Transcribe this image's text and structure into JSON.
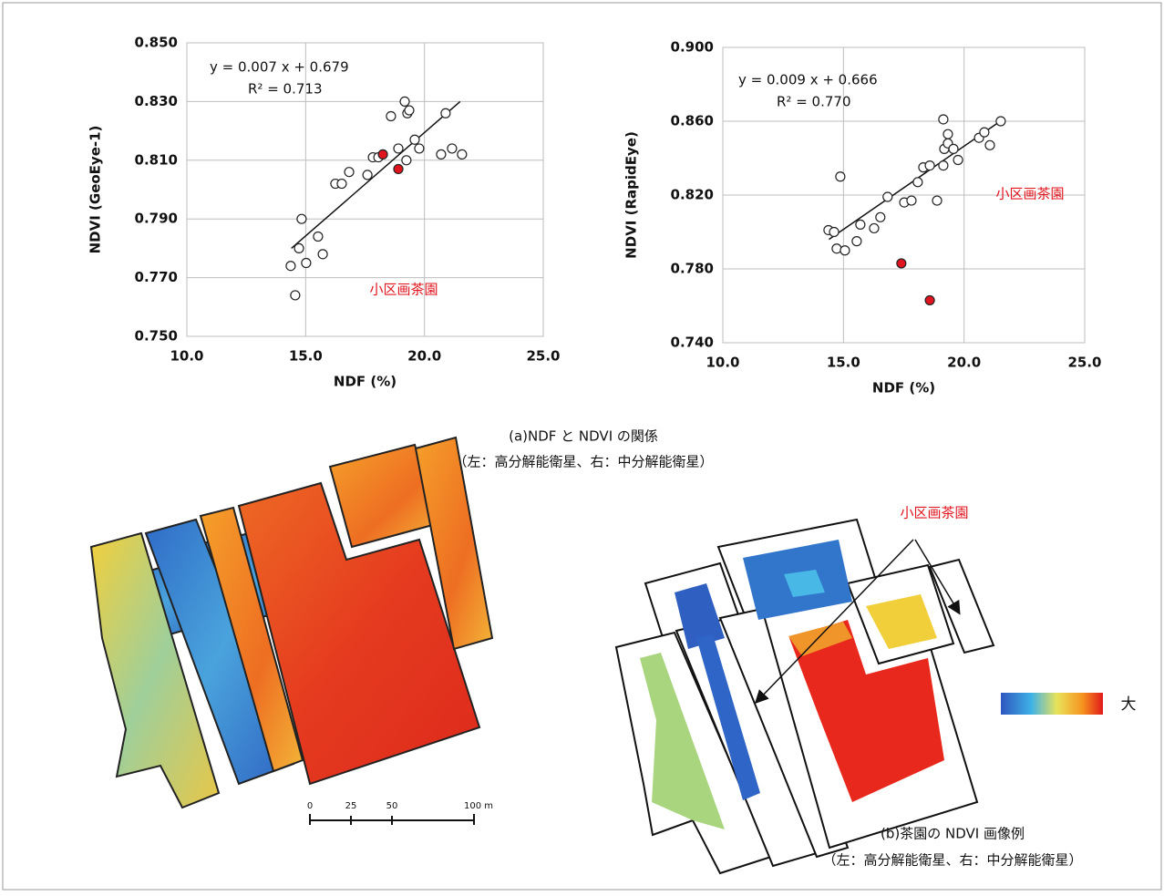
{
  "chart_data": [
    {
      "type": "scatter",
      "y_label": "NDVI (GeoEye-1)",
      "x_label": "NDF (%)",
      "xlim": [
        10,
        25
      ],
      "xticks": [
        {
          "value": 10,
          "label": "10.0"
        },
        {
          "value": 15,
          "label": "15.0"
        },
        {
          "value": 20,
          "label": "20.0"
        },
        {
          "value": 25,
          "label": "25.0"
        }
      ],
      "ylim": [
        0.75,
        0.85
      ],
      "yticks": [
        {
          "value": 0.75,
          "label": "0.750"
        },
        {
          "value": 0.77,
          "label": "0.770"
        },
        {
          "value": 0.79,
          "label": "0.790"
        },
        {
          "value": 0.81,
          "label": "0.810"
        },
        {
          "value": 0.83,
          "label": "0.830"
        },
        {
          "value": 0.85,
          "label": "0.850"
        }
      ],
      "grid": true,
      "series": [
        {
          "color": "#ffffff",
          "x": [
            14.37,
            14.56,
            14.72,
            15.02,
            14.83,
            15.52,
            15.72,
            16.25,
            16.52,
            16.83,
            17.6,
            17.83,
            18.06,
            18.9,
            18.59,
            19.17,
            19.24,
            19.28,
            19.36,
            19.59,
            19.78,
            20.89,
            20.7,
            21.16,
            21.58
          ],
          "values": [
            0.774,
            0.764,
            0.78,
            0.775,
            0.79,
            0.784,
            0.778,
            0.802,
            0.802,
            0.806,
            0.805,
            0.811,
            0.811,
            0.814,
            0.825,
            0.83,
            0.81,
            0.826,
            0.827,
            0.817,
            0.814,
            0.826,
            0.812,
            0.814,
            0.812
          ]
        },
        {
          "color": "#e0141e",
          "x": [
            18.25,
            18.9
          ],
          "values": [
            0.812,
            0.807
          ]
        }
      ],
      "trendline": {
        "x": [
          14.4,
          21.5
        ],
        "values": [
          0.78,
          0.83
        ]
      },
      "equation": "y = 0.007 x + 0.679",
      "r_squared": "R² = 0.713",
      "annotation": "小区画茶園"
    },
    {
      "type": "scatter",
      "y_label": "NDVI (RapidEye)",
      "x_label": "NDF (%)",
      "xlim": [
        10,
        25
      ],
      "xticks": [
        {
          "value": 10,
          "label": "10.0"
        },
        {
          "value": 15,
          "label": "15.0"
        },
        {
          "value": 20,
          "label": "20.0"
        },
        {
          "value": 25,
          "label": "25.0"
        }
      ],
      "ylim": [
        0.74,
        0.9
      ],
      "yticks": [
        {
          "value": 0.74,
          "label": "0.740"
        },
        {
          "value": 0.78,
          "label": "0.780"
        },
        {
          "value": 0.82,
          "label": "0.820"
        },
        {
          "value": 0.86,
          "label": "0.860"
        },
        {
          "value": 0.9,
          "label": "0.900"
        }
      ],
      "grid": true,
      "series": [
        {
          "color": "#ffffff",
          "x": [
            14.38,
            14.61,
            14.87,
            14.72,
            15.06,
            15.55,
            15.7,
            16.27,
            16.53,
            16.83,
            17.52,
            17.82,
            18.08,
            18.31,
            18.58,
            18.88,
            19.14,
            19.18,
            19.33,
            19.33,
            19.56,
            19.75,
            19.14,
            20.62,
            20.84,
            21.07,
            21.52
          ],
          "values": [
            0.801,
            0.8,
            0.83,
            0.791,
            0.79,
            0.795,
            0.804,
            0.802,
            0.808,
            0.819,
            0.816,
            0.817,
            0.827,
            0.835,
            0.836,
            0.817,
            0.861,
            0.845,
            0.848,
            0.853,
            0.845,
            0.839,
            0.836,
            0.851,
            0.854,
            0.847,
            0.86
          ]
        },
        {
          "color": "#e0141e",
          "x": [
            17.4,
            18.58
          ],
          "values": [
            0.783,
            0.763
          ]
        }
      ],
      "trendline": {
        "x": [
          14.4,
          21.5
        ],
        "values": [
          0.796,
          0.86
        ]
      },
      "equation": "y = 0.009 x + 0.666",
      "r_squared": "R² = 0.770",
      "annotation": "小区画茶園"
    }
  ],
  "caption_a": [
    "(a)NDF と NDVI の関係",
    "（左：高分解能衛星、右：中分解能衛星）"
  ],
  "caption_b": [
    "(b)茶園の NDVI 画像例",
    "（左：高分解能衛星、右：中分解能衛星）"
  ],
  "map_annotation": "小区画茶園",
  "color_bar_label": "大",
  "scale_bar": [
    "0",
    "25",
    "50",
    "100 m"
  ]
}
